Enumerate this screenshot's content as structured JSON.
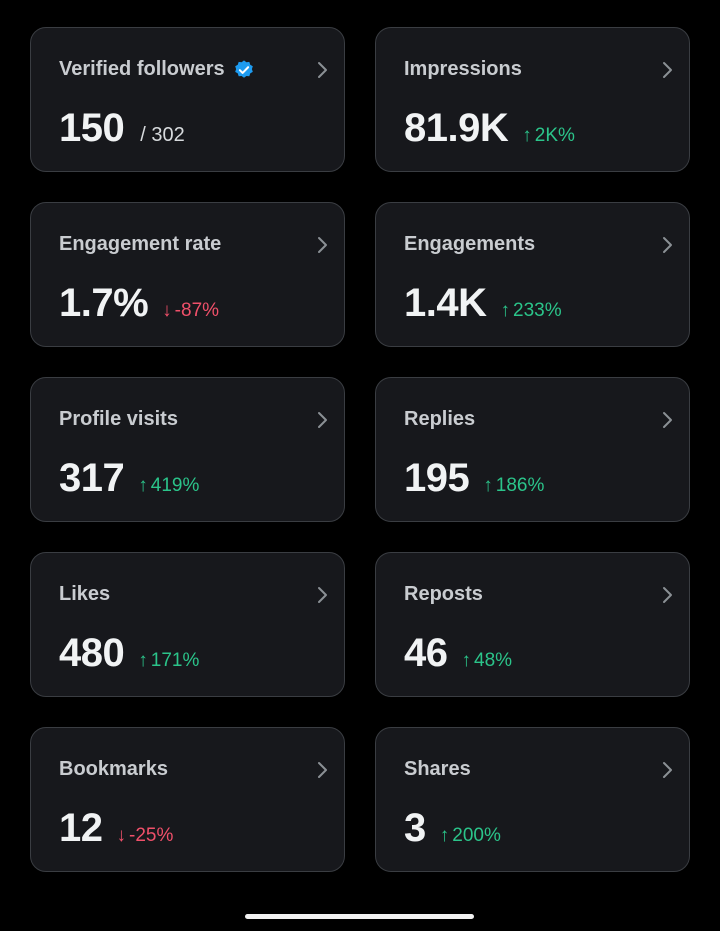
{
  "cards": [
    {
      "title": "Verified followers",
      "value": "150",
      "sub": "/ 302",
      "verified": true
    },
    {
      "title": "Impressions",
      "value": "81.9K",
      "delta": "2K%",
      "direction": "up"
    },
    {
      "title": "Engagement rate",
      "value": "1.7%",
      "delta": "-87%",
      "direction": "down"
    },
    {
      "title": "Engagements",
      "value": "1.4K",
      "delta": "233%",
      "direction": "up"
    },
    {
      "title": "Profile visits",
      "value": "317",
      "delta": "419%",
      "direction": "up"
    },
    {
      "title": "Replies",
      "value": "195",
      "delta": "186%",
      "direction": "up"
    },
    {
      "title": "Likes",
      "value": "480",
      "delta": "171%",
      "direction": "up"
    },
    {
      "title": "Reposts",
      "value": "46",
      "delta": "48%",
      "direction": "up"
    },
    {
      "title": "Bookmarks",
      "value": "12",
      "delta": "-25%",
      "direction": "down"
    },
    {
      "title": "Shares",
      "value": "3",
      "delta": "200%",
      "direction": "up"
    }
  ],
  "arrows": {
    "up": "↑",
    "down": "↓"
  },
  "icons": {
    "verified": "verified-badge-icon",
    "chevron": "chevron-right-icon"
  },
  "colors": {
    "up": "#2bc48a",
    "down": "#f0506a",
    "verified": "#1d9bf0",
    "card_bg": "#17181c",
    "border": "#3a3d42"
  }
}
